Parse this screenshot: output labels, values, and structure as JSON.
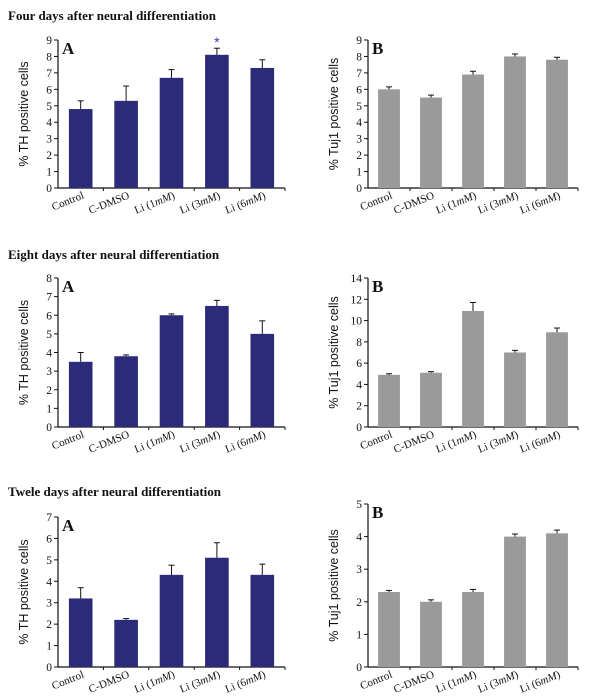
{
  "chart_data": [
    {
      "id": "four-A",
      "section_title": "Four days after neural differentiation",
      "panel": "A",
      "type": "bar",
      "ylabel": "% TH positive cells",
      "categories": [
        "Control",
        "C-DMSO",
        "Li (1mM)",
        "Li (3mM)",
        "Li (6mM)"
      ],
      "values": [
        4.8,
        5.3,
        6.7,
        8.1,
        7.3
      ],
      "errors": [
        0.5,
        0.9,
        0.5,
        0.4,
        0.5
      ],
      "ylim": [
        0,
        9
      ],
      "yticks": [
        "0",
        "1",
        "2",
        "3",
        "4",
        "5",
        "6",
        "7",
        "8",
        "9"
      ],
      "annotation": {
        "text": "*",
        "category_index": 3
      },
      "color": "#2b2b7a"
    },
    {
      "id": "four-B",
      "panel": "B",
      "type": "bar",
      "ylabel": "% Tuj1 positive cells",
      "categories": [
        "Control",
        "C-DMSO",
        "Li (1mM)",
        "Li (3mM)",
        "Li (6mM)"
      ],
      "values": [
        6.0,
        5.5,
        6.9,
        8.0,
        7.8
      ],
      "errors": [
        0.15,
        0.15,
        0.2,
        0.15,
        0.15
      ],
      "ylim": [
        0,
        9
      ],
      "yticks": [
        "0",
        "1",
        "2",
        "3",
        "4",
        "5",
        "6",
        "7",
        "8",
        "9"
      ],
      "color": "#9a9a9a"
    },
    {
      "id": "eight-A",
      "section_title": "Eight days after neural differentiation",
      "panel": "A",
      "type": "bar",
      "ylabel": "% TH positive cells",
      "categories": [
        "Control",
        "C-DMSO",
        "Li (1mM)",
        "Li (3mM)",
        "Li (6mM)"
      ],
      "values": [
        3.5,
        3.8,
        6.0,
        6.5,
        5.0
      ],
      "errors": [
        0.5,
        0.07,
        0.07,
        0.3,
        0.7
      ],
      "ylim": [
        0,
        8
      ],
      "yticks": [
        "0",
        "1",
        "2",
        "3",
        "4",
        "5",
        "6",
        "7",
        "8"
      ],
      "color": "#2b2b7a"
    },
    {
      "id": "eight-B",
      "panel": "B",
      "type": "bar",
      "ylabel": "% Tuj1 positive cells",
      "categories": [
        "Control",
        "C-DMSO",
        "Li (1mM)",
        "Li (3mM)",
        "Li (6mM)"
      ],
      "values": [
        4.9,
        5.1,
        10.9,
        7.0,
        8.9
      ],
      "errors": [
        0.1,
        0.1,
        0.8,
        0.2,
        0.4
      ],
      "ylim": [
        0,
        14
      ],
      "yticks": [
        "0",
        "2",
        "4",
        "6",
        "8",
        "10",
        "12",
        "14"
      ],
      "color": "#9a9a9a"
    },
    {
      "id": "twelve-A",
      "section_title": "Twele days after neural differentiation",
      "panel": "A",
      "type": "bar",
      "ylabel": "% TH positive cells",
      "categories": [
        "Control",
        "C-DMSO",
        "Li (1mM)",
        "Li (3mM)",
        "Li (6mM)"
      ],
      "values": [
        3.2,
        2.2,
        4.3,
        5.1,
        4.3
      ],
      "errors": [
        0.5,
        0.06,
        0.45,
        0.7,
        0.5
      ],
      "ylim": [
        0,
        7
      ],
      "yticks": [
        "0",
        "1",
        "2",
        "3",
        "4",
        "5",
        "6",
        "7"
      ],
      "color": "#2b2b7a"
    },
    {
      "id": "twelve-B",
      "panel": "B",
      "type": "bar",
      "ylabel": "% Tuj1 positive cells",
      "categories": [
        "Control",
        "C-DMSO",
        "Li (1mM)",
        "Li (3mM)",
        "Li (6mM)"
      ],
      "values": [
        2.3,
        2.0,
        2.3,
        4.0,
        4.1
      ],
      "errors": [
        0.05,
        0.06,
        0.08,
        0.08,
        0.1
      ],
      "ylim": [
        0,
        5
      ],
      "yticks": [
        "0",
        "1",
        "2",
        "3",
        "4",
        "5"
      ],
      "color": "#9a9a9a"
    }
  ]
}
